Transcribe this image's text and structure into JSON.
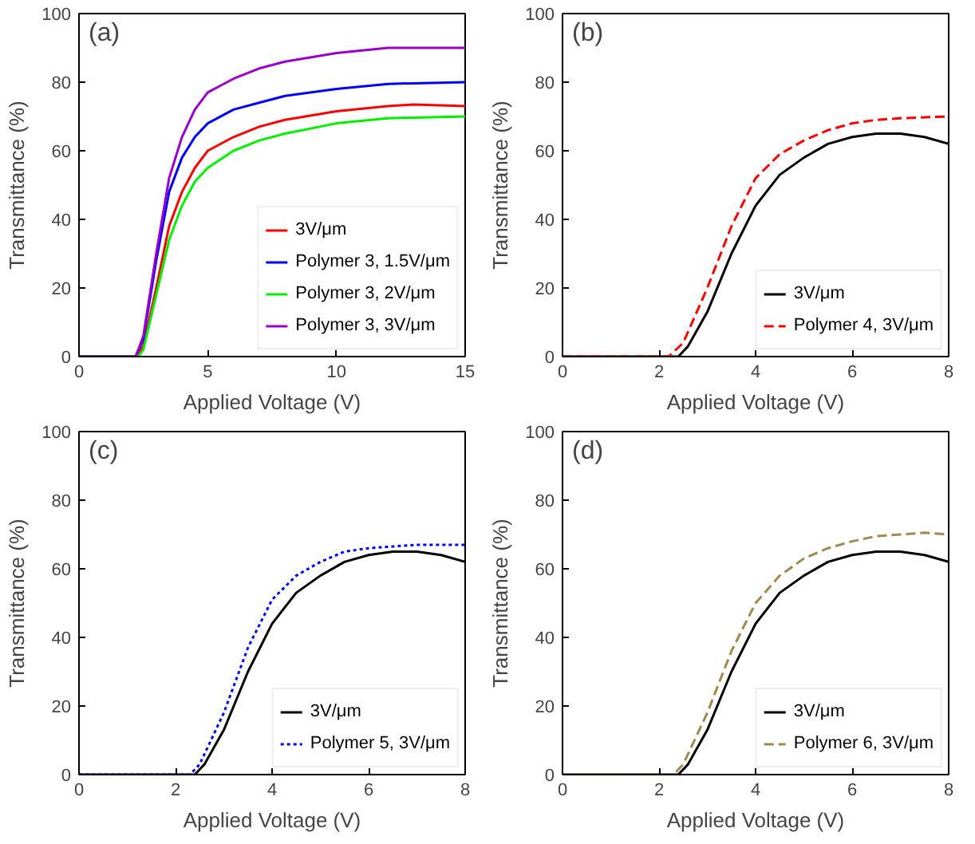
{
  "chart_data": [
    {
      "type": "line",
      "annotations": [
        "(a)"
      ],
      "xlabel": "Applied Voltage (V)",
      "ylabel": "Transmittance (%)",
      "xlim": [
        0,
        15
      ],
      "xticks": [
        0,
        5,
        10,
        15
      ],
      "ylim": [
        0,
        100
      ],
      "yticks": [
        0,
        20,
        40,
        60,
        80,
        100
      ],
      "grid": false,
      "legend": "bottom right",
      "marker": "none",
      "series": [
        {
          "name": "3V/μm",
          "color": "#ff0000",
          "line_style": "solid",
          "x": [
            0,
            2.2,
            2.5,
            3,
            3.5,
            4,
            4.5,
            5,
            6,
            7,
            8,
            10,
            12,
            13,
            15
          ],
          "values": [
            0,
            0,
            3,
            20,
            38,
            48,
            55,
            60,
            64,
            67,
            69,
            71.5,
            73,
            73.5,
            73
          ]
        },
        {
          "name": "Polymer 3, 1.5V/μm",
          "color": "#0000ff",
          "line_style": "solid",
          "x": [
            0,
            2.2,
            2.5,
            3,
            3.5,
            4,
            4.5,
            5,
            6,
            7,
            8,
            10,
            12,
            15
          ],
          "values": [
            0,
            0,
            5,
            28,
            48,
            58,
            64,
            68,
            72,
            74,
            76,
            78,
            79.5,
            80
          ]
        },
        {
          "name": "Polymer 3, 2V/μm",
          "color": "#00ee00",
          "line_style": "solid",
          "x": [
            0,
            2.3,
            2.5,
            3,
            3.5,
            4,
            4.5,
            5,
            6,
            7,
            8,
            10,
            12,
            15
          ],
          "values": [
            0,
            0,
            2,
            18,
            34,
            44,
            51,
            55,
            60,
            63,
            65,
            68,
            69.5,
            70
          ]
        },
        {
          "name": "Polymer 3, 3V/μm",
          "color": "#9900cc",
          "line_style": "solid",
          "x": [
            0,
            2.2,
            2.5,
            3,
            3.5,
            4,
            4.5,
            5,
            6,
            7,
            8,
            10,
            12,
            15
          ],
          "values": [
            0,
            0,
            6,
            30,
            52,
            64,
            72,
            77,
            81,
            84,
            86,
            88.5,
            90,
            90
          ]
        }
      ]
    },
    {
      "type": "line",
      "annotations": [
        "(b)"
      ],
      "xlabel": "Applied Voltage (V)",
      "ylabel": "Transmittance (%)",
      "xlim": [
        0,
        8
      ],
      "xticks": [
        0,
        2,
        4,
        6,
        8
      ],
      "ylim": [
        0,
        100
      ],
      "yticks": [
        0,
        20,
        40,
        60,
        80,
        100
      ],
      "grid": false,
      "legend": "bottom right",
      "marker": "none",
      "series": [
        {
          "name": "3V/μm",
          "color": "#000000",
          "line_style": "solid",
          "x": [
            0,
            2.4,
            2.6,
            3,
            3.5,
            4,
            4.5,
            5,
            5.5,
            6,
            6.5,
            7,
            7.5,
            8
          ],
          "values": [
            0,
            0,
            3,
            13,
            30,
            44,
            53,
            58,
            62,
            64,
            65,
            65,
            64,
            62
          ]
        },
        {
          "name": "Polymer 4, 3V/μm",
          "color": "#ff0000",
          "line_style": "dashed",
          "x": [
            0,
            2.2,
            2.5,
            3,
            3.5,
            4,
            4.5,
            5,
            5.5,
            6,
            6.5,
            7,
            8
          ],
          "values": [
            0,
            0,
            4,
            20,
            38,
            52,
            59,
            63,
            66,
            68,
            69,
            69.5,
            70
          ]
        }
      ]
    },
    {
      "type": "line",
      "annotations": [
        "(c)"
      ],
      "xlabel": "Applied Voltage (V)",
      "ylabel": "Transmittance (%)",
      "xlim": [
        0,
        8
      ],
      "xticks": [
        0,
        2,
        4,
        6,
        8
      ],
      "ylim": [
        0,
        100
      ],
      "yticks": [
        0,
        20,
        40,
        60,
        80,
        100
      ],
      "grid": false,
      "legend": "bottom right",
      "marker": "none",
      "series": [
        {
          "name": "3V/μm",
          "color": "#000000",
          "line_style": "solid",
          "x": [
            0,
            2.4,
            2.6,
            3,
            3.5,
            4,
            4.5,
            5,
            5.5,
            6,
            6.5,
            7,
            7.5,
            8
          ],
          "values": [
            0,
            0,
            3,
            13,
            30,
            44,
            53,
            58,
            62,
            64,
            65,
            65,
            64,
            62
          ]
        },
        {
          "name": "Polymer 5, 3V/μm",
          "color": "#0000ff",
          "line_style": "dotted",
          "x": [
            0,
            2.3,
            2.5,
            3,
            3.5,
            4,
            4.5,
            5,
            5.5,
            6,
            6.5,
            7,
            8
          ],
          "values": [
            0,
            0,
            3,
            18,
            37,
            51,
            58,
            62,
            65,
            66,
            66.5,
            67,
            67
          ]
        }
      ]
    },
    {
      "type": "line",
      "annotations": [
        "(d)"
      ],
      "xlabel": "Applied Voltage (V)",
      "ylabel": "Transmittance (%)",
      "xlim": [
        0,
        8
      ],
      "xticks": [
        0,
        2,
        4,
        6,
        8
      ],
      "ylim": [
        0,
        100
      ],
      "yticks": [
        0,
        20,
        40,
        60,
        80,
        100
      ],
      "grid": false,
      "legend": "bottom right",
      "marker": "none",
      "series": [
        {
          "name": "3V/μm",
          "color": "#000000",
          "line_style": "solid",
          "x": [
            0,
            2.4,
            2.6,
            3,
            3.5,
            4,
            4.5,
            5,
            5.5,
            6,
            6.5,
            7,
            7.5,
            8
          ],
          "values": [
            0,
            0,
            3,
            13,
            30,
            44,
            53,
            58,
            62,
            64,
            65,
            65,
            64,
            62
          ]
        },
        {
          "name": "Polymer 6, 3V/μm",
          "color": "#9c8a50",
          "line_style": "dashed",
          "x": [
            0,
            2.3,
            2.5,
            3,
            3.5,
            4,
            4.5,
            5,
            5.5,
            6,
            6.5,
            7,
            7.5,
            8
          ],
          "values": [
            0,
            0,
            3,
            18,
            36,
            50,
            58,
            63,
            66,
            68,
            69.5,
            70,
            70.5,
            70
          ]
        }
      ]
    }
  ]
}
